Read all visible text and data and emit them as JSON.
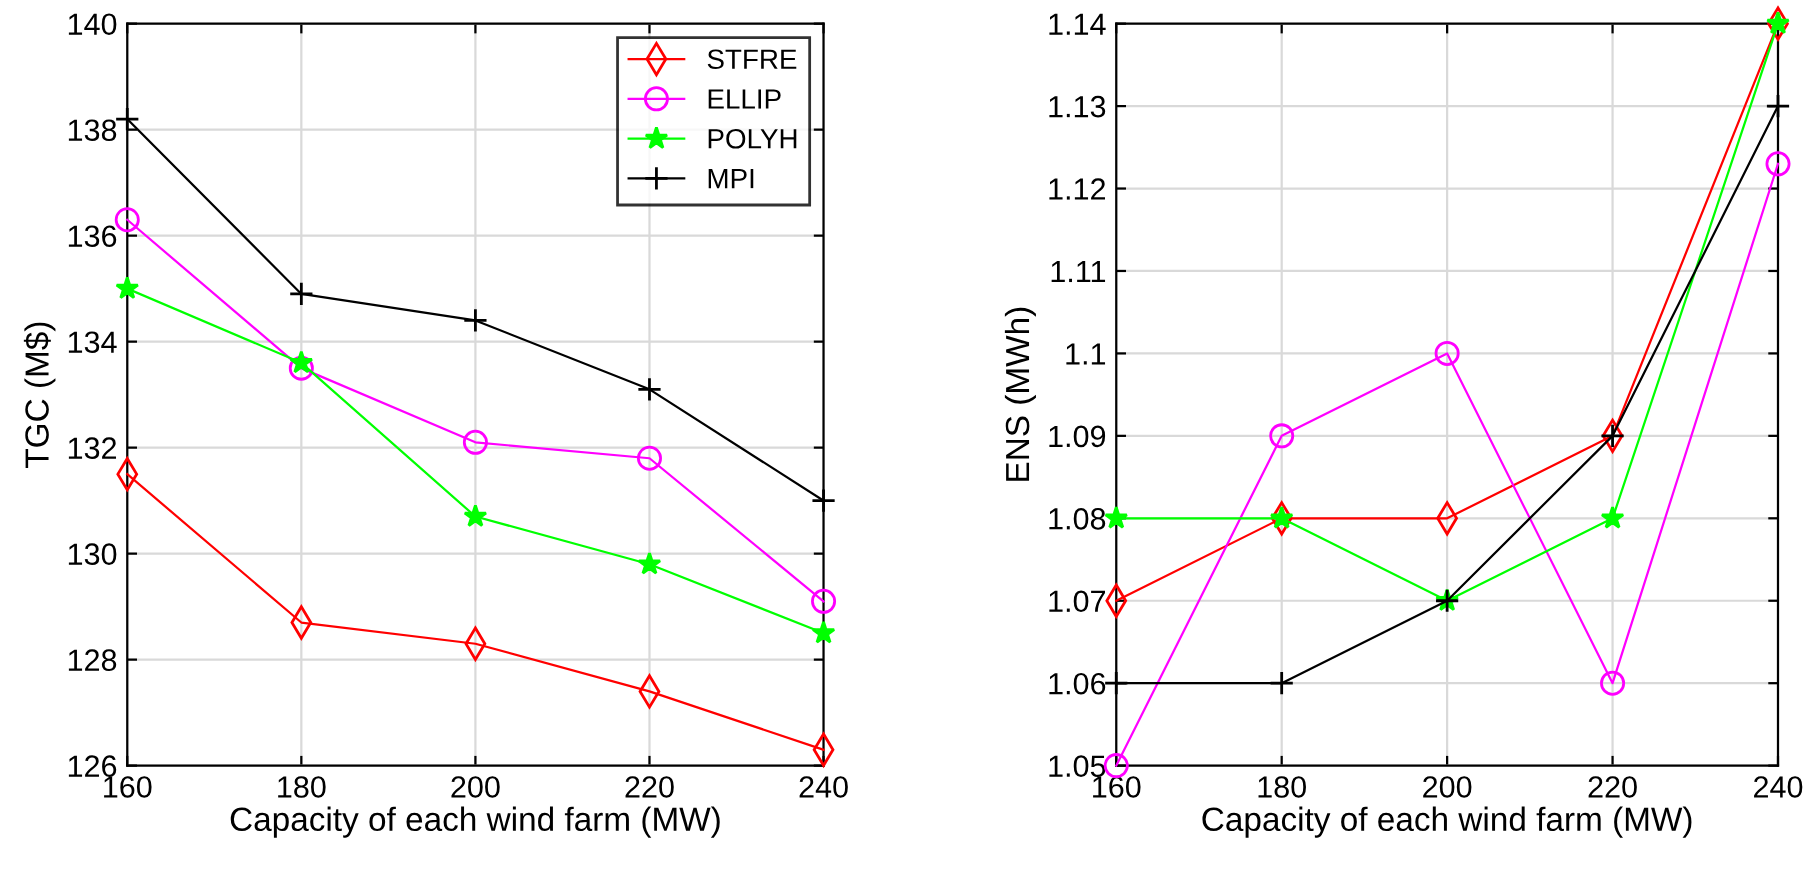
{
  "chart_data": [
    {
      "type": "line",
      "xlabel": "Capacity of each wind farm (MW)",
      "ylabel": "TGC (M$)",
      "x": [
        160,
        180,
        200,
        220,
        240
      ],
      "xlim": [
        160,
        240
      ],
      "xticks": [
        160,
        180,
        200,
        220,
        240
      ],
      "ylim": [
        126,
        140
      ],
      "yticks": [
        126,
        128,
        130,
        132,
        134,
        136,
        138,
        140
      ],
      "grid": true,
      "legend": "top right",
      "series": [
        {
          "name": "STFRE",
          "color": "#ff0000",
          "marker": "diamond",
          "values": [
            131.5,
            128.7,
            128.3,
            127.4,
            126.3
          ]
        },
        {
          "name": "ELLIP",
          "color": "#ff00ff",
          "marker": "circle",
          "values": [
            136.3,
            133.5,
            132.1,
            131.8,
            129.1
          ]
        },
        {
          "name": "POLYH",
          "color": "#00ff00",
          "marker": "star",
          "values": [
            135.0,
            133.6,
            130.7,
            129.8,
            128.5
          ]
        },
        {
          "name": "MPI",
          "color": "#000000",
          "marker": "cross",
          "values": [
            138.2,
            134.9,
            134.4,
            133.1,
            131.0
          ]
        }
      ]
    },
    {
      "type": "line",
      "xlabel": "Capacity of each wind farm (MW)",
      "ylabel": "ENS (MWh)",
      "x": [
        160,
        180,
        200,
        220,
        240
      ],
      "xlim": [
        160,
        240
      ],
      "xticks": [
        160,
        180,
        200,
        220,
        240
      ],
      "ylim": [
        1.05,
        1.14
      ],
      "yticks": [
        1.05,
        1.06,
        1.07,
        1.08,
        1.09,
        1.1,
        1.11,
        1.12,
        1.13,
        1.14
      ],
      "grid": true,
      "series": [
        {
          "color": "#ff0000",
          "marker": "diamond",
          "values": [
            1.07,
            1.08,
            1.08,
            1.09,
            1.14
          ]
        },
        {
          "color": "#ff00ff",
          "marker": "circle",
          "values": [
            1.05,
            1.09,
            1.1,
            1.06,
            1.123
          ]
        },
        {
          "color": "#00ff00",
          "marker": "star",
          "values": [
            1.08,
            1.08,
            1.07,
            1.08,
            1.14
          ]
        },
        {
          "color": "#000000",
          "marker": "cross",
          "values": [
            1.06,
            1.06,
            1.07,
            1.09,
            1.13
          ]
        }
      ]
    }
  ]
}
